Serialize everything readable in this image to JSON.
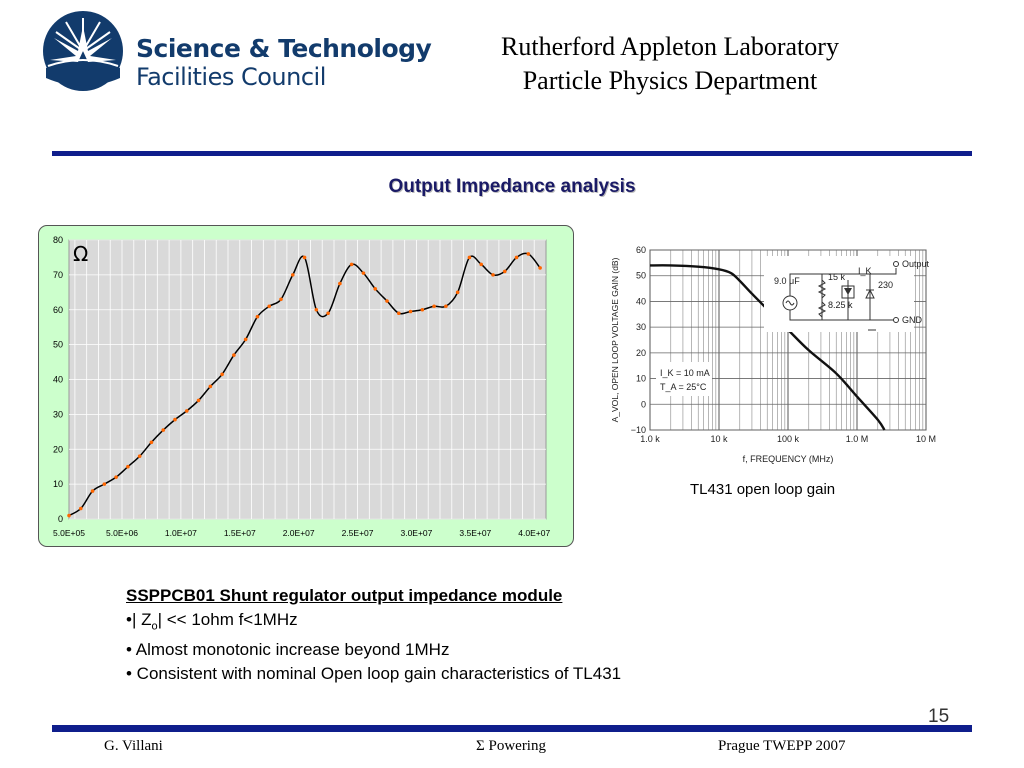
{
  "header": {
    "logo_line1": "Science & Technology",
    "logo_line2": "Facilities Council",
    "institution_line1": "Rutherford Appleton Laboratory",
    "institution_line2": "Particle Physics Department"
  },
  "slide": {
    "title": "Output Impedance analysis",
    "page_number": "15"
  },
  "chart_data": [
    {
      "type": "line",
      "title": "",
      "unit_label": "Ω",
      "xlabel": "",
      "ylabel": "",
      "ylim": [
        0,
        80
      ],
      "yticks": [
        0,
        10,
        20,
        30,
        40,
        50,
        60,
        70,
        80
      ],
      "xticks": [
        "5.0E+05",
        "5.0E+06",
        "1.0E+07",
        "1.5E+07",
        "2.0E+07",
        "2.5E+07",
        "3.0E+07",
        "3.5E+07",
        "4.0E+07"
      ],
      "grid": true,
      "legend": "none",
      "plot_background": "#d9d9d9",
      "panel_background": "#ccffcc",
      "line_color": "#000000",
      "marker_color": "#ff6600",
      "series": [
        {
          "x": [
            500000.0,
            1500000.0,
            2500000.0,
            3500000.0,
            4500000.0,
            5500000.0,
            6500000.0,
            7500000.0,
            8500000.0,
            9500000.0,
            10500000.0,
            11500000.0,
            12500000.0,
            13500000.0,
            14500000.0,
            15500000.0,
            16500000.0,
            17500000.0,
            18500000.0,
            19500000.0,
            20500000.0,
            21500000.0,
            22500000.0,
            23500000.0,
            24500000.0,
            25500000.0,
            26500000.0,
            27500000.0,
            28500000.0,
            29500000.0,
            30500000.0,
            31500000.0,
            32500000.0,
            33500000.0,
            34500000.0,
            35500000.0,
            36500000.0,
            37500000.0,
            38500000.0,
            39500000.0,
            40500000.0
          ],
          "y": [
            1,
            3,
            8,
            10,
            12,
            15,
            18,
            22,
            25.5,
            28.5,
            31,
            34,
            38,
            41.5,
            47,
            51.5,
            58,
            61,
            63,
            70,
            75,
            60,
            59,
            67.5,
            73,
            70.5,
            66,
            62.5,
            59,
            59.5,
            60,
            61,
            61,
            65,
            75,
            73,
            70,
            71,
            75,
            76,
            72
          ]
        }
      ]
    },
    {
      "type": "line",
      "title": "",
      "xlabel": "f, FREQUENCY (MHz)",
      "ylabel": "A_VOL, OPEN LOOP VOLTAGE GAIN (dB)",
      "xscale": "log",
      "xlim": [
        0.001,
        10
      ],
      "ylim": [
        -10,
        60
      ],
      "xticks": [
        "1.0 k",
        "10 k",
        "100 k",
        "1.0 M",
        "10 M"
      ],
      "yticks": [
        "60",
        "50",
        "40",
        "30",
        "20",
        "10",
        "0",
        "−10"
      ],
      "grid": true,
      "legend": "none",
      "annotations": [
        "I_K = 10 mA",
        "T_A = 25°C",
        "9.0 μF",
        "15 k",
        "I_K",
        "Output",
        "230",
        "8.25 k",
        "GND"
      ],
      "series": [
        {
          "x": [
            0.001,
            0.002,
            0.005,
            0.01,
            0.015,
            0.02,
            0.03,
            0.05,
            0.1,
            0.2,
            0.5,
            1.0,
            2.0,
            2.5
          ],
          "y": [
            54,
            54,
            53.5,
            52.5,
            51,
            48,
            43,
            37,
            29,
            21,
            12,
            3,
            -6,
            -10
          ]
        }
      ]
    }
  ],
  "right_figure_caption": "TL431 open loop gain",
  "notes": {
    "heading": "SSPPCB01 Shunt regulator output impedance module",
    "bullet1_prefix": "•| Z",
    "bullet1_sub": "o",
    "bullet1_suffix": "| << 1ohm f<1MHz",
    "bullet2": "• Almost monotonic increase beyond 1MHz",
    "bullet3": "• Consistent with nominal Open loop gain characteristics of TL431"
  },
  "footer": {
    "author": "G. Villani",
    "topic": "Σ Powering",
    "event": "Prague TWEPP 2007"
  },
  "colors": {
    "brand_navy": "#123b6c",
    "rule_blue": "#0f1e8c",
    "title_text": "#1a1a66"
  }
}
